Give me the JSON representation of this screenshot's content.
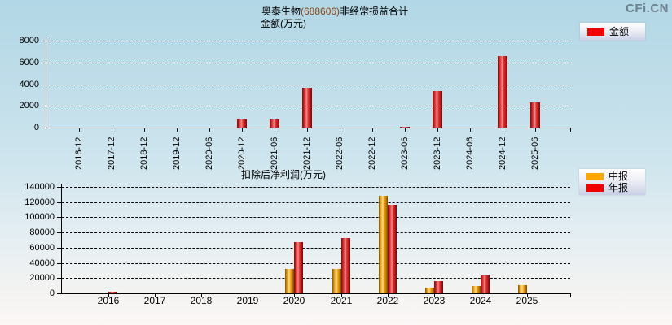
{
  "watermark": "CFi.CN",
  "top_title": {
    "prefix": "奥泰生物",
    "code": "(688606)",
    "suffix": "非经常损益合计"
  },
  "colors": {
    "bar_red": "#f00000",
    "bar_orange": "#ffa800",
    "watermark_gray": "#6d8090",
    "background_top": "#b2d7e6",
    "background_bottom": "#fbf8f6"
  },
  "chart_data": [
    {
      "type": "bar",
      "title": "奥泰生物(688606)非经常损益合计",
      "subtitle": "金额(万元)",
      "categories": [
        "2016-12",
        "2017-12",
        "2018-12",
        "2019-12",
        "2020-06",
        "2020-12",
        "2021-06",
        "2021-12",
        "2022-06",
        "2022-12",
        "2023-06",
        "2023-12",
        "2024-06",
        "2024-12",
        "2025-06"
      ],
      "series": [
        {
          "name": "金额",
          "color": "#f00000",
          "values": [
            0,
            0,
            0,
            0,
            0,
            750,
            750,
            3700,
            0,
            0,
            100,
            3400,
            0,
            6600,
            2300
          ]
        }
      ],
      "ylim": [
        0,
        8000
      ],
      "yticks": [
        0,
        2000,
        4000,
        6000,
        8000
      ],
      "grid": true,
      "legend_position": "top-right"
    },
    {
      "type": "bar",
      "title": "扣除后净利润(万元)",
      "categories": [
        "2016",
        "2017",
        "2018",
        "2019",
        "2020",
        "2021",
        "2022",
        "2023",
        "2024",
        "2025"
      ],
      "series": [
        {
          "name": "中报",
          "color": "#ffa800",
          "values": [
            0,
            0,
            0,
            0,
            32000,
            32000,
            128000,
            8000,
            9500,
            11000
          ]
        },
        {
          "name": "年报",
          "color": "#f00000",
          "values": [
            2000,
            0,
            0,
            0,
            67000,
            73000,
            117000,
            16000,
            24000,
            0
          ]
        }
      ],
      "ylim": [
        0,
        140000
      ],
      "yticks": [
        0,
        20000,
        40000,
        60000,
        80000,
        100000,
        120000,
        140000
      ],
      "grid": true,
      "legend_position": "right"
    }
  ]
}
